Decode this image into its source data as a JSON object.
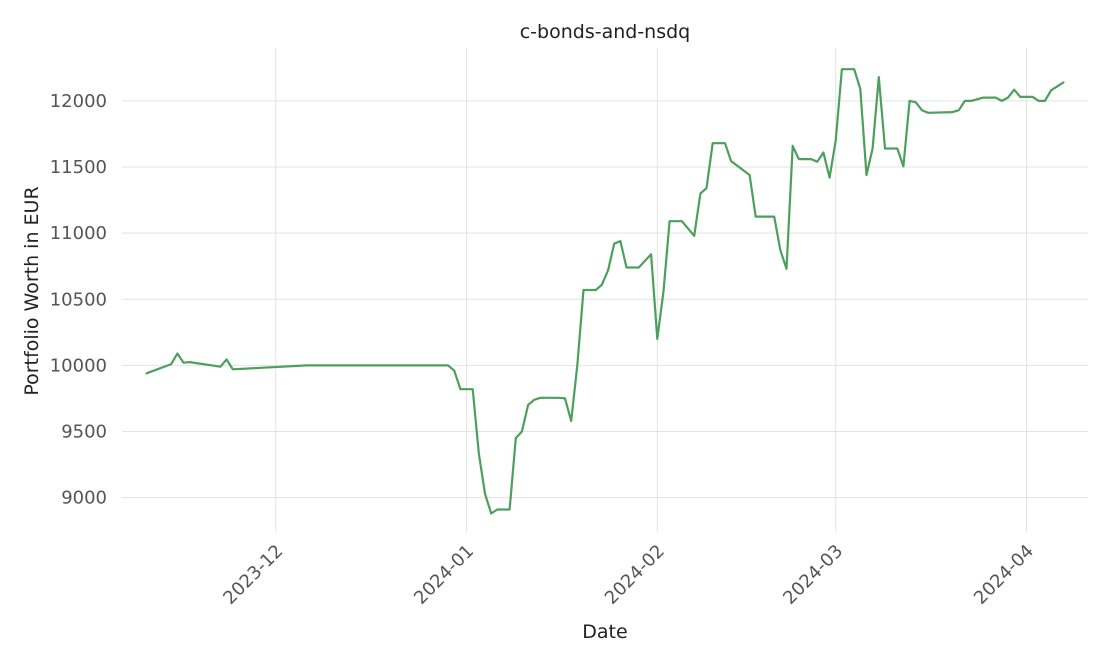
{
  "chart_data": {
    "type": "line",
    "title": "c-bonds-and-nsdq",
    "xlabel": "Date",
    "ylabel": "Portfolio Worth in EUR",
    "grid": true,
    "legend": "none",
    "colors": {
      "series": "#4c9f5c",
      "grid": "#e3e3e3",
      "text": "#555555"
    },
    "xlim": [
      "2023-11-06",
      "2024-04-11"
    ],
    "ylim": [
      8740,
      12400
    ],
    "x_ticks": [
      "2023-12",
      "2024-01",
      "2024-02",
      "2024-03",
      "2024-04"
    ],
    "y_ticks": [
      9000,
      9500,
      10000,
      10500,
      11000,
      11500,
      12000
    ],
    "series": [
      {
        "values": [
          [
            "2023-11-10",
            9940
          ],
          [
            "2023-11-14",
            10010
          ],
          [
            "2023-11-15",
            10090
          ],
          [
            "2023-11-16",
            10020
          ],
          [
            "2023-11-17",
            10025
          ],
          [
            "2023-11-22",
            9990
          ],
          [
            "2023-11-23",
            10045
          ],
          [
            "2023-11-24",
            9970
          ],
          [
            "2023-12-06",
            10000
          ],
          [
            "2023-12-29",
            10000
          ],
          [
            "2023-12-30",
            9960
          ],
          [
            "2023-12-31",
            9820
          ],
          [
            "2024-01-01",
            9820
          ],
          [
            "2024-01-02",
            9820
          ],
          [
            "2024-01-03",
            9330
          ],
          [
            "2024-01-04",
            9030
          ],
          [
            "2024-01-05",
            8880
          ],
          [
            "2024-01-06",
            8910
          ],
          [
            "2024-01-08",
            8910
          ],
          [
            "2024-01-09",
            9450
          ],
          [
            "2024-01-10",
            9500
          ],
          [
            "2024-01-11",
            9700
          ],
          [
            "2024-01-12",
            9740
          ],
          [
            "2024-01-13",
            9755
          ],
          [
            "2024-01-16",
            9755
          ],
          [
            "2024-01-17",
            9750
          ],
          [
            "2024-01-18",
            9580
          ],
          [
            "2024-01-19",
            10000
          ],
          [
            "2024-01-20",
            10570
          ],
          [
            "2024-01-22",
            10570
          ],
          [
            "2024-01-23",
            10610
          ],
          [
            "2024-01-24",
            10720
          ],
          [
            "2024-01-25",
            10920
          ],
          [
            "2024-01-26",
            10940
          ],
          [
            "2024-01-27",
            10740
          ],
          [
            "2024-01-29",
            10740
          ],
          [
            "2024-01-31",
            10840
          ],
          [
            "2024-02-01",
            10200
          ],
          [
            "2024-02-02",
            10560
          ],
          [
            "2024-02-03",
            11090
          ],
          [
            "2024-02-05",
            11090
          ],
          [
            "2024-02-07",
            10980
          ],
          [
            "2024-02-08",
            11300
          ],
          [
            "2024-02-09",
            11340
          ],
          [
            "2024-02-10",
            11680
          ],
          [
            "2024-02-12",
            11680
          ],
          [
            "2024-02-13",
            11545
          ],
          [
            "2024-02-16",
            11440
          ],
          [
            "2024-02-17",
            11125
          ],
          [
            "2024-02-20",
            11125
          ],
          [
            "2024-02-21",
            10870
          ],
          [
            "2024-02-22",
            10730
          ],
          [
            "2024-02-23",
            11660
          ],
          [
            "2024-02-24",
            11560
          ],
          [
            "2024-02-26",
            11560
          ],
          [
            "2024-02-27",
            11540
          ],
          [
            "2024-02-28",
            11610
          ],
          [
            "2024-02-29",
            11420
          ],
          [
            "2024-03-01",
            11700
          ],
          [
            "2024-03-02",
            12240
          ],
          [
            "2024-03-04",
            12240
          ],
          [
            "2024-03-05",
            12090
          ],
          [
            "2024-03-06",
            11440
          ],
          [
            "2024-03-07",
            11640
          ],
          [
            "2024-03-08",
            12180
          ],
          [
            "2024-03-09",
            11640
          ],
          [
            "2024-03-11",
            11640
          ],
          [
            "2024-03-12",
            11505
          ],
          [
            "2024-03-13",
            12000
          ],
          [
            "2024-03-14",
            11990
          ],
          [
            "2024-03-15",
            11930
          ],
          [
            "2024-03-16",
            11910
          ],
          [
            "2024-03-20",
            11915
          ],
          [
            "2024-03-21",
            11930
          ],
          [
            "2024-03-22",
            12000
          ],
          [
            "2024-03-23",
            12000
          ],
          [
            "2024-03-25",
            12025
          ],
          [
            "2024-03-27",
            12025
          ],
          [
            "2024-03-28",
            12000
          ],
          [
            "2024-03-29",
            12025
          ],
          [
            "2024-03-30",
            12085
          ],
          [
            "2024-03-31",
            12030
          ],
          [
            "2024-04-02",
            12030
          ],
          [
            "2024-04-03",
            12000
          ],
          [
            "2024-04-04",
            12000
          ],
          [
            "2024-04-05",
            12080
          ],
          [
            "2024-04-07",
            12140
          ]
        ]
      }
    ]
  }
}
